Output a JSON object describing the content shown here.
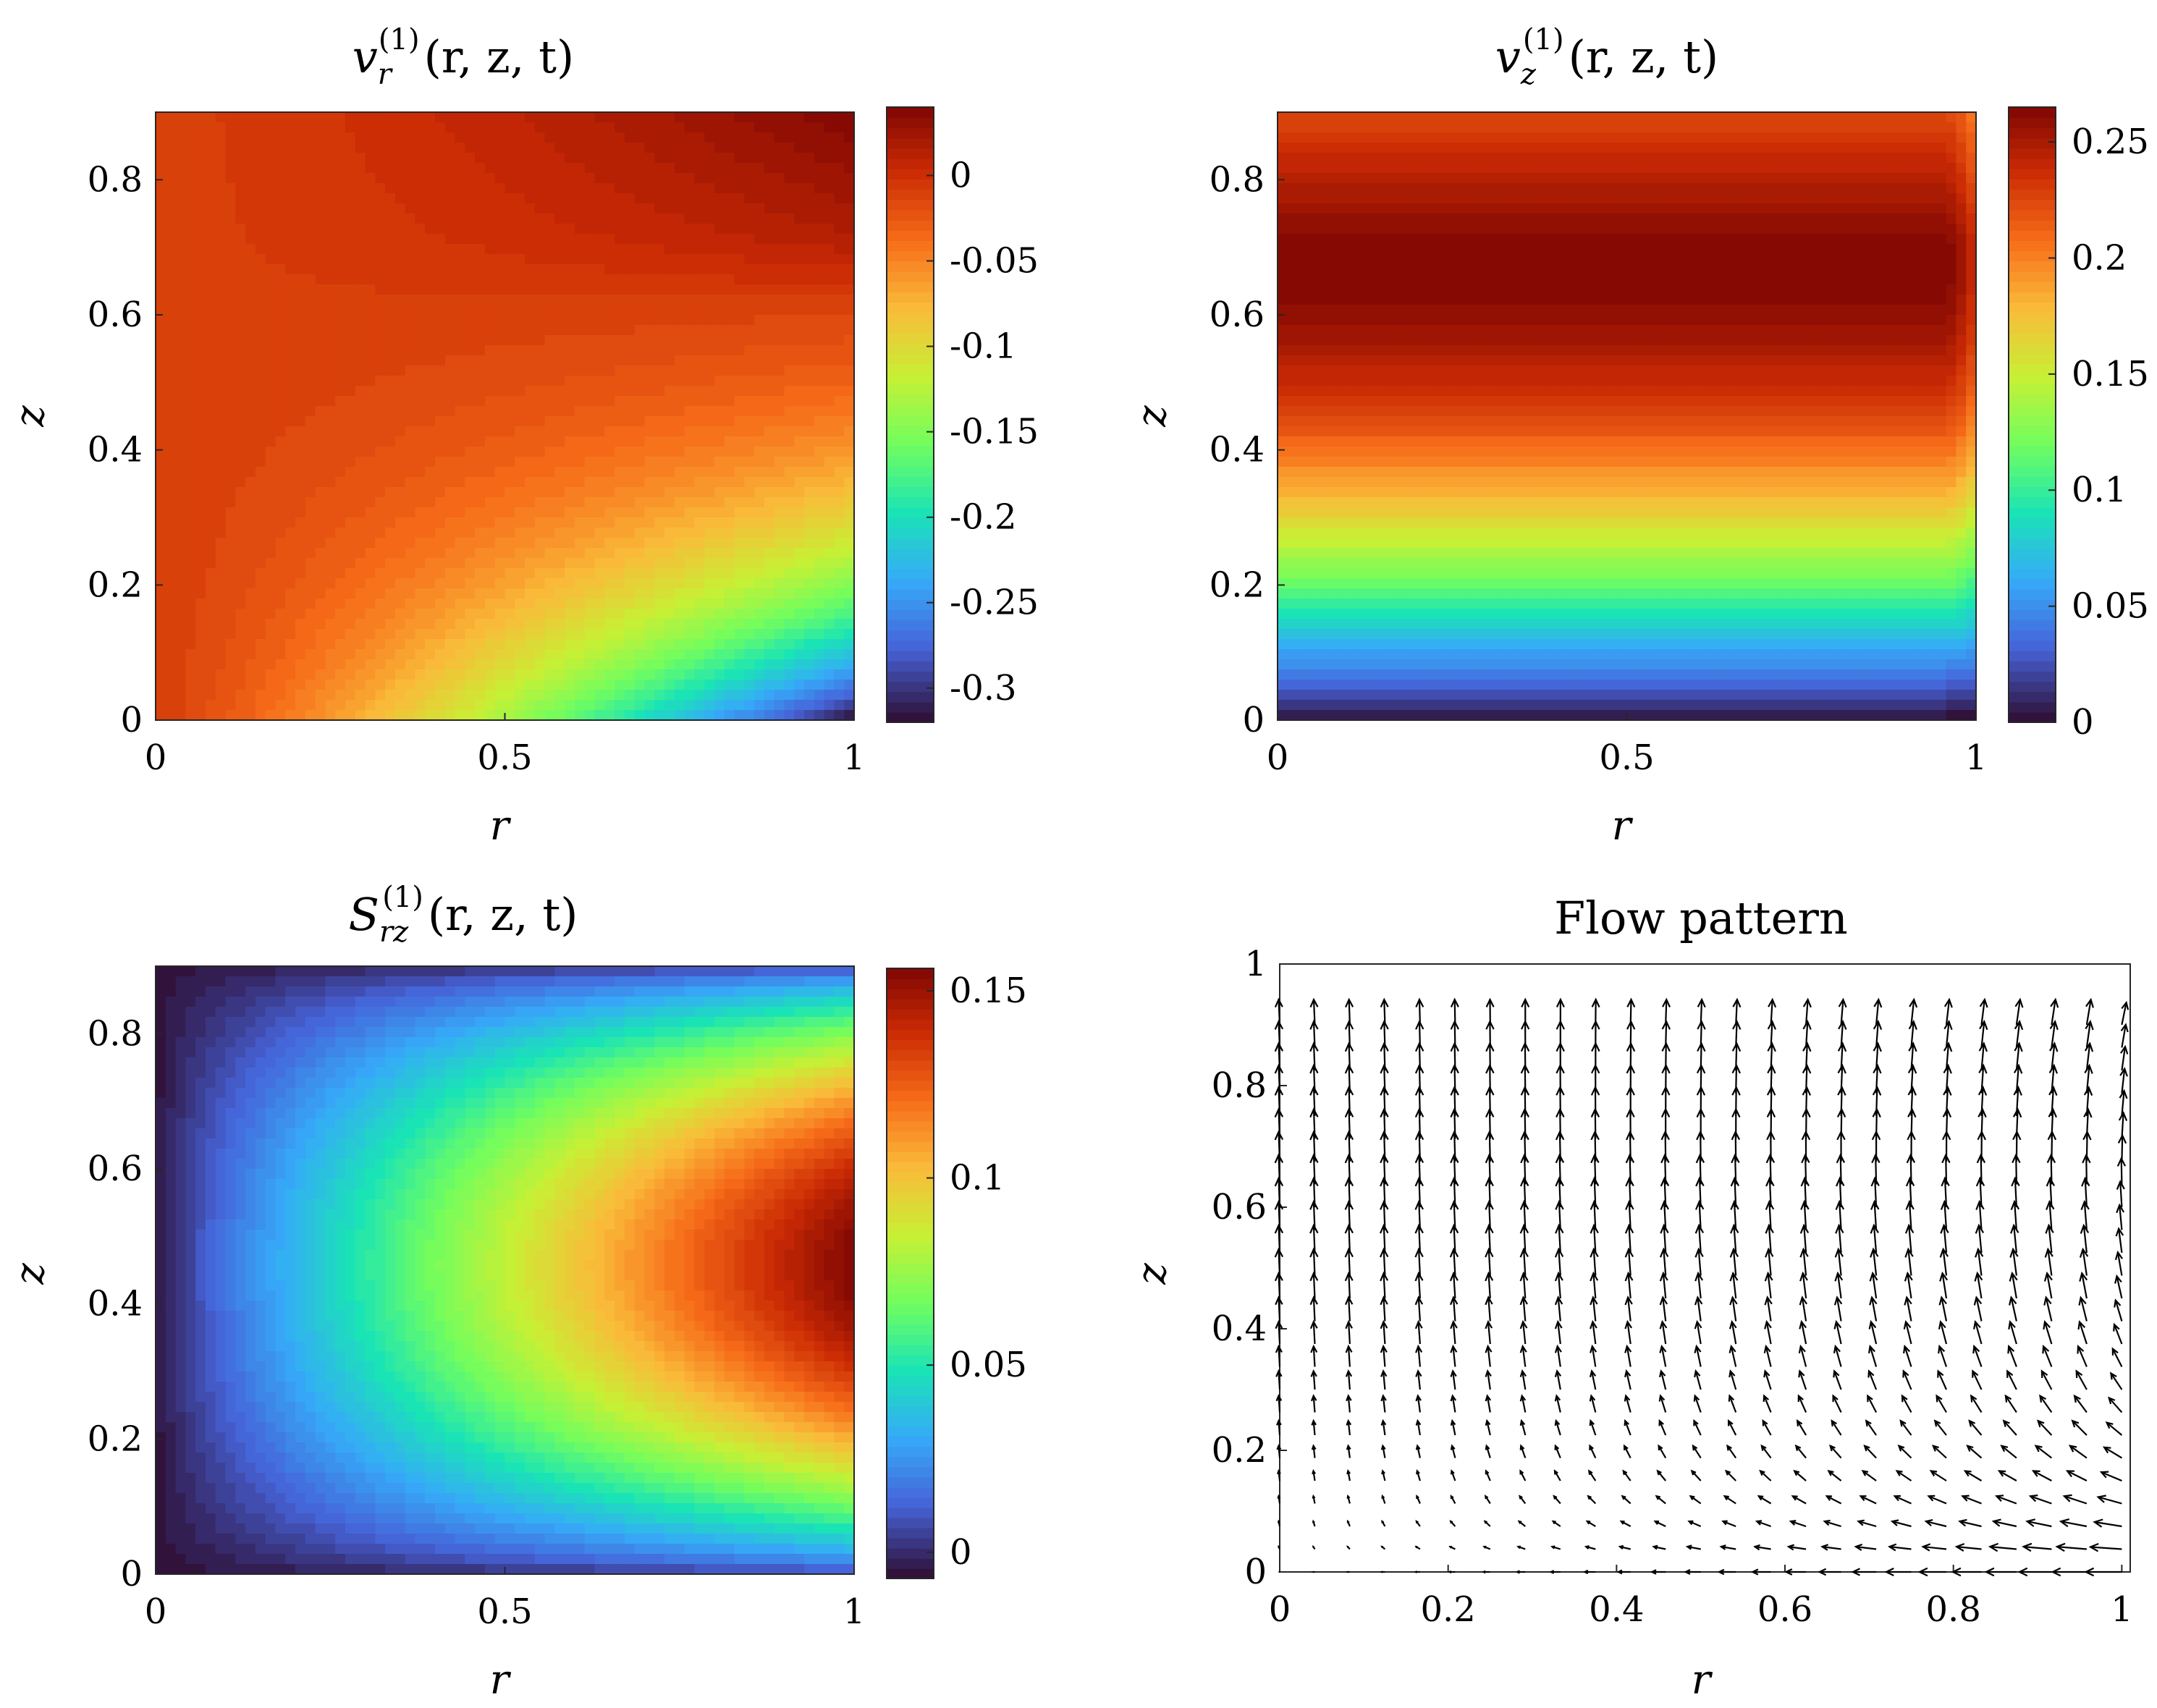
{
  "chart_data": [
    {
      "id": "vr",
      "type": "contour",
      "title": "v_r^(1)(r, z, t)",
      "title_parts": {
        "main": "v",
        "sub": "r",
        "sup": "(1)",
        "args": "(r, z, t)"
      },
      "xlabel": "r",
      "ylabel": "z",
      "xlim": [
        0,
        1
      ],
      "ylim": [
        0,
        0.9
      ],
      "xticks": [
        0,
        0.5,
        1
      ],
      "xtick_labels": [
        "0",
        "0.5",
        "1"
      ],
      "yticks": [
        0,
        0.2,
        0.4,
        0.6,
        0.8
      ],
      "ytick_labels": [
        "0",
        "0.2",
        "0.4",
        "0.6",
        "0.8"
      ],
      "colorbar": {
        "clim": [
          -0.32,
          0.04
        ],
        "ticks": [
          0,
          -0.05,
          -0.1,
          -0.15,
          -0.2,
          -0.25,
          -0.3
        ],
        "tick_labels": [
          "0",
          "-0.05",
          "-0.1",
          "-0.15",
          "-0.2",
          "-0.25",
          "-0.3"
        ]
      },
      "colormap": "turbo",
      "contour_levels": 60
    },
    {
      "id": "vz",
      "type": "contour",
      "title": "v_z^(1)(r, z, t)",
      "title_parts": {
        "main": "v",
        "sub": "z",
        "sup": "(1)",
        "args": "(r, z, t)"
      },
      "xlabel": "r",
      "ylabel": "z",
      "xlim": [
        0,
        1
      ],
      "ylim": [
        0,
        0.9
      ],
      "xticks": [
        0,
        0.5,
        1
      ],
      "xtick_labels": [
        "0",
        "0.5",
        "1"
      ],
      "yticks": [
        0,
        0.2,
        0.4,
        0.6,
        0.8
      ],
      "ytick_labels": [
        "0",
        "0.2",
        "0.4",
        "0.6",
        "0.8"
      ],
      "colorbar": {
        "clim": [
          0,
          0.265
        ],
        "ticks": [
          0.25,
          0.2,
          0.15,
          0.1,
          0.05,
          0
        ],
        "tick_labels": [
          "0.25",
          "0.2",
          "0.15",
          "0.1",
          "0.05",
          "0"
        ]
      },
      "colormap": "turbo",
      "contour_levels": 60
    },
    {
      "id": "srz",
      "type": "contour",
      "title": "S_rz^(1)(r, z, t)",
      "title_parts": {
        "main": "S",
        "sub": "rz",
        "sup": "(1)",
        "args": "(r, z, t)"
      },
      "xlabel": "r",
      "ylabel": "z",
      "xlim": [
        0,
        1
      ],
      "ylim": [
        0,
        0.9
      ],
      "xticks": [
        0,
        0.5,
        1
      ],
      "xtick_labels": [
        "0",
        "0.5",
        "1"
      ],
      "yticks": [
        0,
        0.2,
        0.4,
        0.6,
        0.8
      ],
      "ytick_labels": [
        "0",
        "0.2",
        "0.4",
        "0.6",
        "0.8"
      ],
      "colorbar": {
        "clim": [
          -0.007,
          0.156
        ],
        "ticks": [
          0.15,
          0.1,
          0.05,
          0
        ],
        "tick_labels": [
          "0.15",
          "0.1",
          "0.05",
          "0"
        ]
      },
      "colormap": "turbo",
      "contour_levels": 60
    },
    {
      "id": "flow",
      "type": "quiver",
      "title": "Flow pattern",
      "xlabel": "r",
      "ylabel": "z",
      "xlim": [
        0,
        1.01
      ],
      "ylim": [
        0,
        1
      ],
      "xticks": [
        0,
        0.2,
        0.4,
        0.6,
        0.8,
        1
      ],
      "xtick_labels": [
        "0",
        "0.2",
        "0.4",
        "0.6",
        "0.8",
        "1"
      ],
      "yticks": [
        0,
        0.2,
        0.4,
        0.6,
        0.8,
        1
      ],
      "ytick_labels": [
        "0",
        "0.2",
        "0.4",
        "0.6",
        "0.8",
        "1"
      ],
      "grid_columns": 25,
      "grid_rows": 25,
      "r_range": [
        0,
        1
      ],
      "z_range": [
        0,
        0.9
      ],
      "field": "velocity (v_r^(1), v_z^(1))",
      "colors": {
        "arrow": "#000000"
      }
    }
  ],
  "colormap_stops": [
    "#30123b",
    "#4662d7",
    "#36aaf9",
    "#1ae4b6",
    "#72fe5e",
    "#c8ef34",
    "#faba39",
    "#f66b19",
    "#ca2a04",
    "#7a0403"
  ],
  "colors": {
    "axis": "#262626",
    "contour_line": "#000000",
    "background": "#ffffff"
  }
}
